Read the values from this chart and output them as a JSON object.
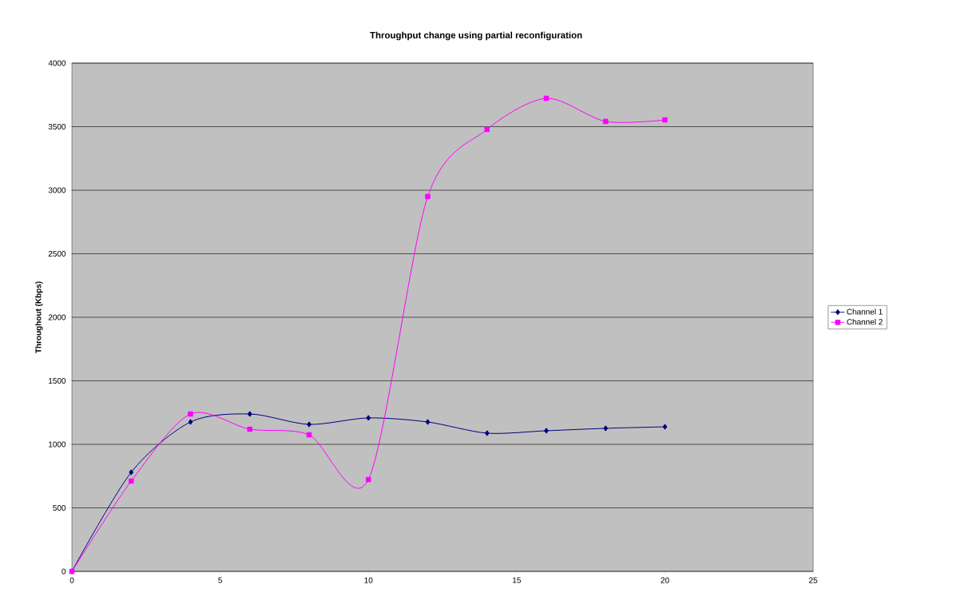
{
  "chart_data": {
    "type": "line",
    "title": "Throughput change using partial reconfiguration",
    "ylabel": "Throughout (Kbps)",
    "x": [
      0,
      2,
      4,
      6,
      8,
      10,
      12,
      14,
      16,
      18,
      20
    ],
    "series": [
      {
        "name": "Channel 1",
        "color": "#000080",
        "marker": "diamond",
        "values": [
          0,
          780,
          1176,
          1239,
          1157,
          1208,
          1176,
          1088,
          1107,
          1126,
          1138
        ]
      },
      {
        "name": "Channel 2",
        "color": "#ff00ff",
        "marker": "square",
        "values": [
          0,
          711,
          1239,
          1119,
          1075,
          723,
          2950,
          3478,
          3723,
          3541,
          3553
        ]
      }
    ],
    "xlim": [
      0,
      25
    ],
    "ylim": [
      0,
      4000
    ],
    "xticks": [
      0,
      5,
      10,
      15,
      20,
      25
    ],
    "yticks": [
      0,
      500,
      1000,
      1500,
      2000,
      2500,
      3000,
      3500,
      4000
    ],
    "grid": "y",
    "legend": "right"
  }
}
